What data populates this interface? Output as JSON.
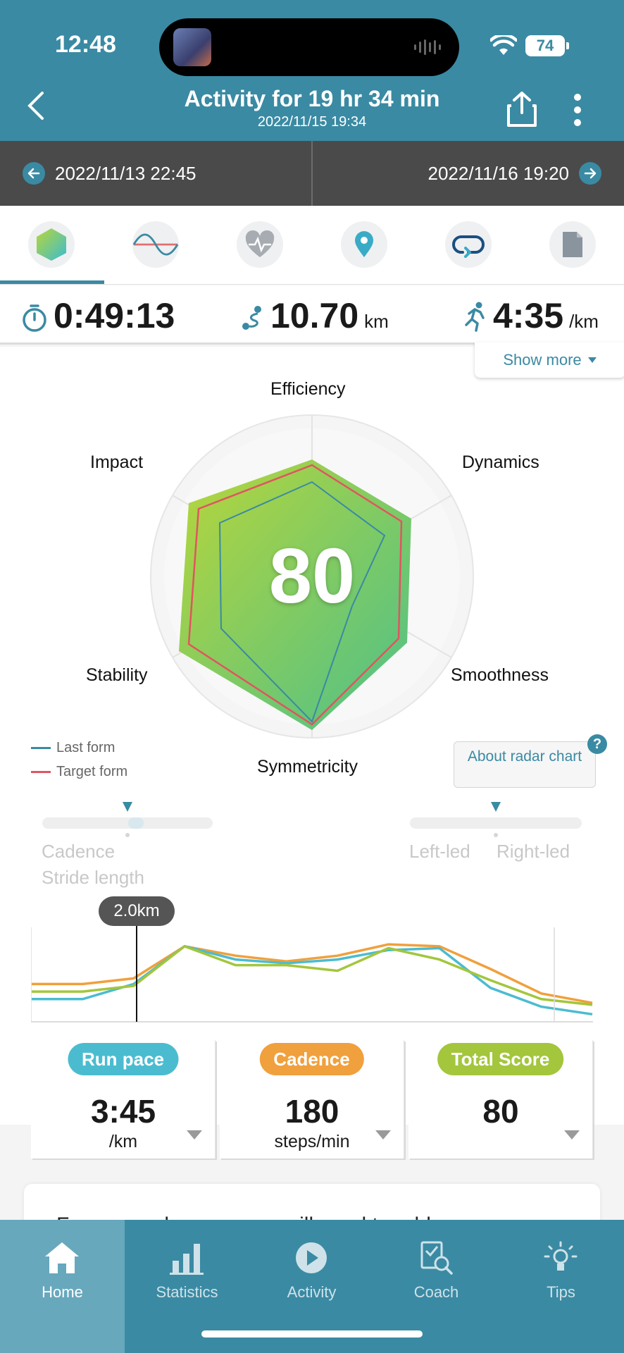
{
  "status": {
    "time": "12:48",
    "battery": "74"
  },
  "header": {
    "title": "Activity for 19 hr 34 min",
    "subtitle": "2022/11/15 19:34"
  },
  "date_nav": {
    "prev": "2022/11/13 22:45",
    "next": "2022/11/16 19:20"
  },
  "tabs": [
    "radar-form",
    "graph",
    "heart-rate",
    "map",
    "laps",
    "notes"
  ],
  "summary": {
    "duration": "0:49:13",
    "distance": "10.70",
    "distance_unit": "km",
    "pace": "4:35",
    "pace_unit": "/km",
    "show_more": "Show more"
  },
  "radar": {
    "score": "80",
    "axes": [
      "Efficiency",
      "Dynamics",
      "Smoothness",
      "Symmetricity",
      "Stability",
      "Impact"
    ],
    "legend": {
      "last": "Last form",
      "target": "Target form"
    },
    "about": "About radar chart",
    "help": "?"
  },
  "sliders": {
    "left": {
      "label1": "Cadence",
      "label2": "Stride length",
      "value": 0.5
    },
    "right": {
      "label1": "Left-led",
      "label2": "Right-led",
      "value": 0.5
    }
  },
  "line_chart": {
    "marker_label": "2.0km",
    "series": [
      {
        "color": "#f0a03c",
        "values": [
          40,
          40,
          46,
          80,
          70,
          64,
          70,
          82,
          80,
          56,
          30,
          20
        ]
      },
      {
        "color": "#4bbcd0",
        "values": [
          24,
          24,
          40,
          80,
          66,
          62,
          66,
          76,
          78,
          36,
          16,
          8
        ]
      },
      {
        "color": "#a3c63c",
        "values": [
          32,
          32,
          38,
          80,
          60,
          60,
          54,
          78,
          66,
          44,
          24,
          18
        ]
      }
    ]
  },
  "metrics": [
    {
      "label": "Run pace",
      "value": "3:45",
      "unit": "/km",
      "color": "#4bbcd0"
    },
    {
      "label": "Cadence",
      "value": "180",
      "unit": "steps/min",
      "color": "#f0a03c"
    },
    {
      "label": "Total Score",
      "value": "80",
      "unit": "",
      "color": "#a3c63c"
    }
  ],
  "info_text": "Form reveals areas you will need to address",
  "bottom_nav": [
    "Home",
    "Statistics",
    "Activity",
    "Coach",
    "Tips"
  ]
}
